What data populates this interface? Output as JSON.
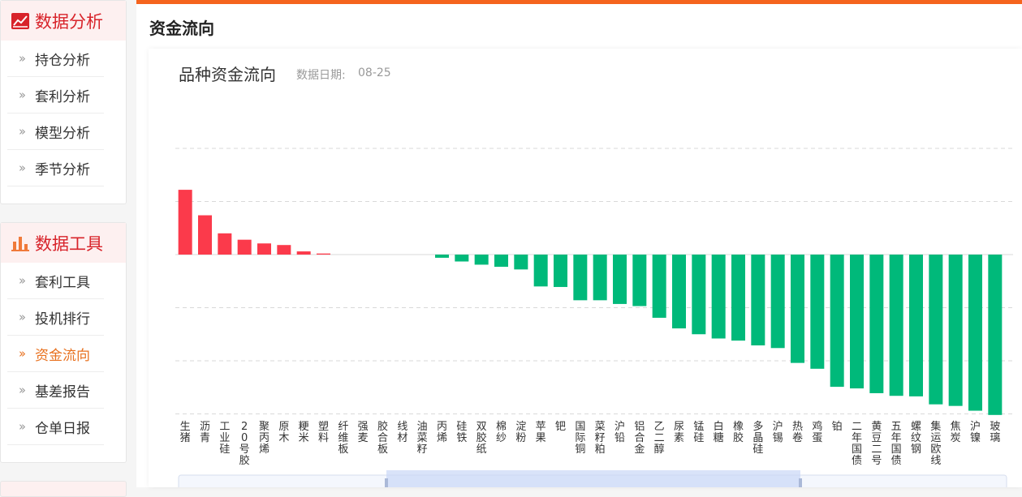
{
  "sidebar": {
    "sections": [
      {
        "title": "数据分析",
        "items": [
          "持仓分析",
          "套利分析",
          "模型分析",
          "季节分析"
        ]
      },
      {
        "title": "数据工具",
        "items": [
          "套利工具",
          "投机排行",
          "资金流向",
          "基差报告",
          "仓单日报"
        ]
      }
    ],
    "active_item": "资金流向"
  },
  "main": {
    "page_title": "资金流向",
    "card_title": "品种资金流向",
    "date_label": "数据日期:",
    "date_value": "08-25"
  },
  "colors": {
    "positive": "#fb3a4b",
    "negative": "#00b97a",
    "accent": "#f5641e",
    "brand_red": "#d8232a"
  },
  "chart_data": {
    "type": "bar",
    "categories": [
      "生猪",
      "沥青",
      "工业硅",
      "20号胶",
      "聚丙烯",
      "原木",
      "粳米",
      "塑料",
      "纤维板",
      "强麦",
      "胶合板",
      "线材",
      "油菜籽",
      "丙烯",
      "硅铁",
      "双胶纸",
      "棉纱",
      "淀粉",
      "苹果",
      "钯",
      "国际铜",
      "菜籽粕",
      "沪铅",
      "铝合金",
      "乙二醇",
      "尿素",
      "锰硅",
      "白糖",
      "橡胶",
      "多晶硅",
      "沪锡",
      "热卷",
      "鸡蛋",
      "铂",
      "二年国债",
      "黄豆二号",
      "五年国债",
      "螺纹钢",
      "集运欧线",
      "焦炭",
      "沪镍",
      "玻璃"
    ],
    "values": [
      1.22,
      0.74,
      0.4,
      0.28,
      0.21,
      0.18,
      0.06,
      0.02,
      0.0,
      0.0,
      0.0,
      0.0,
      0.0,
      -0.06,
      -0.13,
      -0.19,
      -0.23,
      -0.28,
      -0.6,
      -0.61,
      -0.86,
      -0.86,
      -0.93,
      -0.97,
      -1.19,
      -1.39,
      -1.5,
      -1.58,
      -1.62,
      -1.71,
      -1.76,
      -2.04,
      -2.15,
      -2.49,
      -2.52,
      -2.61,
      -2.66,
      -2.67,
      -2.82,
      -2.85,
      -2.94,
      -3.02
    ],
    "ylim": [
      -3.05,
      2.0
    ],
    "grid": true
  }
}
